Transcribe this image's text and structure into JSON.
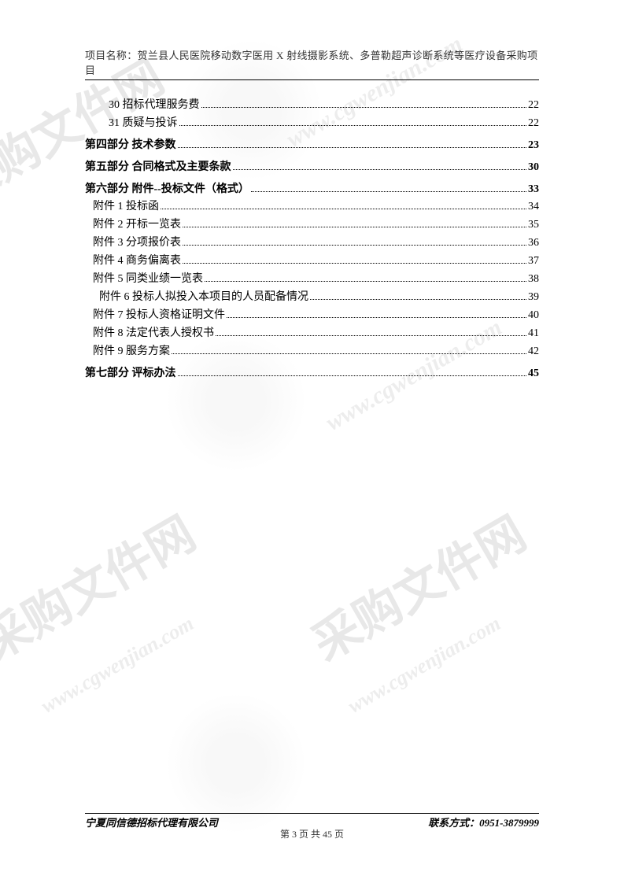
{
  "header": {
    "title": "项目名称：贺兰县人民医院移动数字医用 X 射线摄影系统、多普勒超声诊断系统等医疗设备采购项目"
  },
  "toc": {
    "sub_items_top": [
      {
        "label": "30  招标代理服务费",
        "page": "22",
        "indent": "sub"
      },
      {
        "label": "31 质疑与投诉",
        "page": "22",
        "indent": "sub"
      }
    ],
    "sections": [
      {
        "label": "第四部分    技术参数",
        "page": "23",
        "bold": true,
        "children": []
      },
      {
        "label": "第五部分    合同格式及主要条款",
        "page": "30",
        "bold": true,
        "children": []
      },
      {
        "label": "第六部分    附件--投标文件（格式）",
        "page": "33",
        "bold": true,
        "children": [
          {
            "label": "附件 1 投标函",
            "page": "34",
            "indent": "att"
          },
          {
            "label": "附件 2 开标一览表",
            "page": "35",
            "indent": "att"
          },
          {
            "label": "附件 3 分项报价表",
            "page": "36",
            "indent": "att"
          },
          {
            "label": "附件 4 商务偏离表",
            "page": "37",
            "indent": "att"
          },
          {
            "label": "附件 5 同类业绩一览表",
            "page": "38",
            "indent": "att"
          },
          {
            "label": "附件 6 投标人拟投入本项目的人员配备情况",
            "page": "39",
            "indent": "att2"
          },
          {
            "label": "附件 7 投标人资格证明文件",
            "page": "40",
            "indent": "att"
          },
          {
            "label": "附件 8 法定代表人授权书",
            "page": "41",
            "indent": "att"
          },
          {
            "label": "附件 9 服务方案",
            "page": "42",
            "indent": "att"
          }
        ]
      },
      {
        "label": "第七部分    评标办法",
        "page": "45",
        "bold": true,
        "children": []
      }
    ]
  },
  "footer": {
    "company": "宁夏同信德招标代理有限公司",
    "contact": "联系方式：0951-3879999"
  },
  "page_number": "第 3 页 共 45 页",
  "watermarks": {
    "text_main": "采购文件网",
    "text_url": "www.cgwenjian.com"
  },
  "colors": {
    "text": "#000000",
    "background": "#ffffff",
    "watermark": "#e8e8e8",
    "border": "#000000"
  }
}
